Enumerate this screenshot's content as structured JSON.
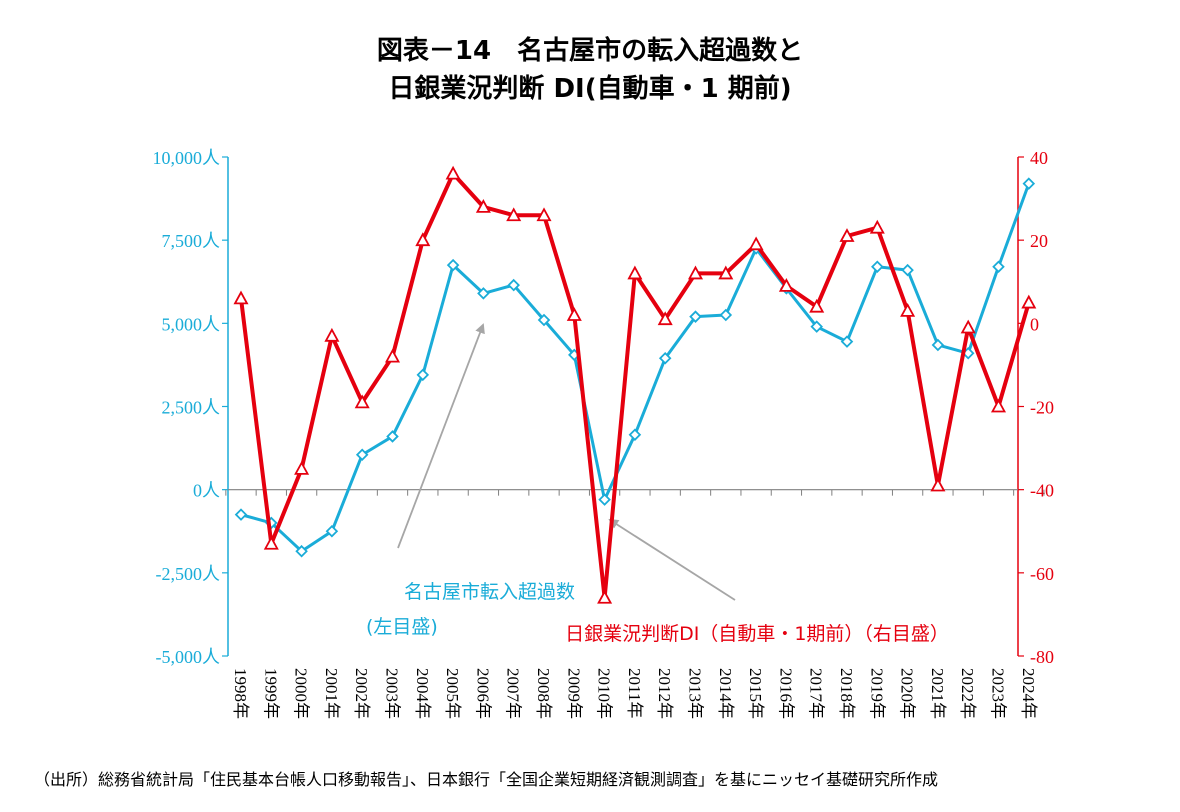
{
  "title_line1": "図表－14　名古屋市の転入超過数と",
  "title_line2": "日銀業況判断 DI(自動車・1 期前)",
  "source": "（出所）総務省統計局「住民基本台帳人口移動報告」、日本銀行「全国企業短期経済観測調査」を基にニッセイ基礎研究所作成",
  "colors": {
    "left_series": "#1AACD8",
    "right_series": "#E5000F",
    "annotation_arrow": "#A6A6A6",
    "zero_line": "#808080"
  },
  "chart_data": {
    "type": "line",
    "categories": [
      "1998年",
      "1999年",
      "2000年",
      "2001年",
      "2002年",
      "2003年",
      "2004年",
      "2005年",
      "2006年",
      "2007年",
      "2008年",
      "2009年",
      "2010年",
      "2011年",
      "2012年",
      "2013年",
      "2014年",
      "2015年",
      "2016年",
      "2017年",
      "2018年",
      "2019年",
      "2020年",
      "2021年",
      "2022年",
      "2023年",
      "2024年"
    ],
    "left_axis": {
      "range": [
        -5000,
        10000
      ],
      "ticks": [
        10000,
        7500,
        5000,
        2500,
        0,
        -2500,
        -5000
      ],
      "tick_labels": [
        "10,000人",
        "7,500人",
        "5,000人",
        "2,500人",
        "0人",
        "-2,500人",
        "-5,000人"
      ]
    },
    "right_axis": {
      "range": [
        -80,
        40
      ],
      "ticks": [
        40,
        20,
        0,
        -20,
        -40,
        -60,
        -80
      ],
      "tick_labels": [
        "40",
        "20",
        "0",
        "-20",
        "-40",
        "-60",
        "-80"
      ]
    },
    "series": [
      {
        "name": "名古屋市転入超過数",
        "axis": "left",
        "marker": "diamond",
        "values": [
          -750,
          -1000,
          -1850,
          -1250,
          1050,
          1600,
          3450,
          6750,
          5900,
          6150,
          5100,
          4050,
          -300,
          1650,
          3950,
          5200,
          5250,
          7250,
          6050,
          4900,
          4450,
          6700,
          6600,
          4350,
          4100,
          6700,
          9200
        ]
      },
      {
        "name": "日銀業況判断DI（自動車・1期前）",
        "axis": "right",
        "marker": "triangle",
        "values": [
          6,
          -53,
          -35,
          -3,
          -19,
          -8,
          20,
          36,
          28,
          26,
          26,
          2,
          -66,
          12,
          1,
          12,
          12,
          19,
          9,
          4,
          21,
          23,
          3,
          -39,
          -1,
          -20,
          5
        ]
      }
    ],
    "annotations": {
      "left_series_label_line1": "名古屋市転入超過数",
      "left_series_label_line2": "(左目盛)",
      "right_series_label": "日銀業況判断DI（自動車・1期前）（右目盛）"
    }
  }
}
